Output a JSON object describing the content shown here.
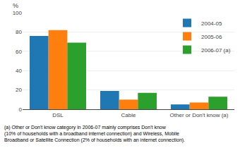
{
  "chart_data": {
    "type": "bar",
    "ylabel": "%",
    "categories": [
      "DSL",
      "Cable",
      "Other or Don't know (a)"
    ],
    "series": [
      {
        "name": "2004-05",
        "values": [
          76,
          19,
          5
        ]
      },
      {
        "name": "2005-06",
        "values": [
          82,
          10,
          7
        ]
      },
      {
        "name": "2006-07 (a)",
        "values": [
          69,
          17,
          13
        ]
      }
    ],
    "ylim": [
      0,
      100
    ],
    "yticks": [
      0,
      20,
      40,
      60,
      80,
      100
    ],
    "grid": true,
    "legend": "upper right",
    "annotations": [
      "(a) Other or Don't know category in 2006-07 mainly comprises Don't know",
      "(10% of households with a broadband internet connection) and Wireless, Mobile",
      "Broadband or Satellite Connection (2% of households with an internet connection)."
    ]
  }
}
